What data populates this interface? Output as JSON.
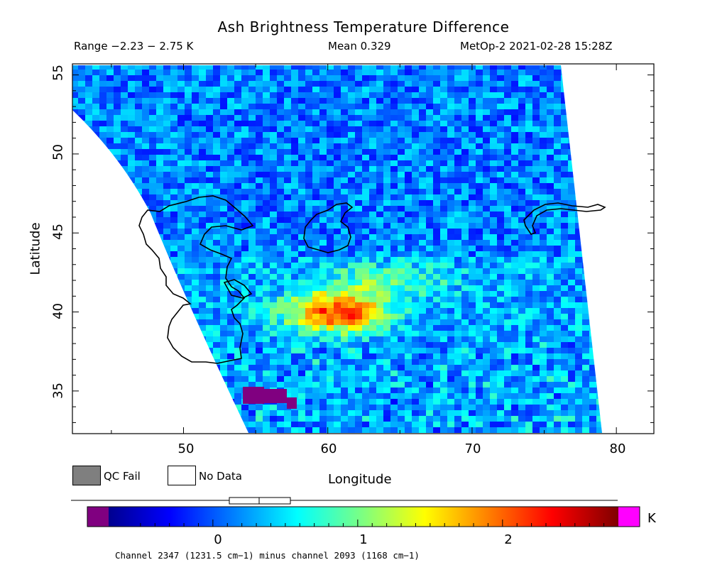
{
  "header": {
    "title": "Ash Brightness Temperature Difference",
    "range": "Range −2.23 − 2.75 K",
    "mean": "Mean 0.329",
    "satellite": "MetOp-2 2021-02-28 15:28Z"
  },
  "axes": {
    "xlabel": "Longitude",
    "ylabel": "Latitude",
    "xticks": [
      "50",
      "60",
      "70",
      "80"
    ],
    "yticks": [
      "55",
      "50",
      "45",
      "40",
      "35"
    ],
    "xrange": [
      42.3,
      82.6
    ],
    "yrange": [
      32.3,
      55.7
    ]
  },
  "legend": {
    "qc_fail": "QC Fail",
    "no_data": "No Data"
  },
  "colorbar": {
    "ticks": [
      "0",
      "1",
      "2"
    ],
    "unit": "K",
    "range": [
      -0.72,
      2.8
    ],
    "mean_marker": 0.329
  },
  "footnote": "Channel 2347 (1231.5 cm−1) minus channel 2093 (1168 cm−1)",
  "colors": {
    "qc_fail": "#7f7f7f",
    "no_data": "#ffffff",
    "below_range": "#800080",
    "above_range": "#ff00ff"
  }
}
